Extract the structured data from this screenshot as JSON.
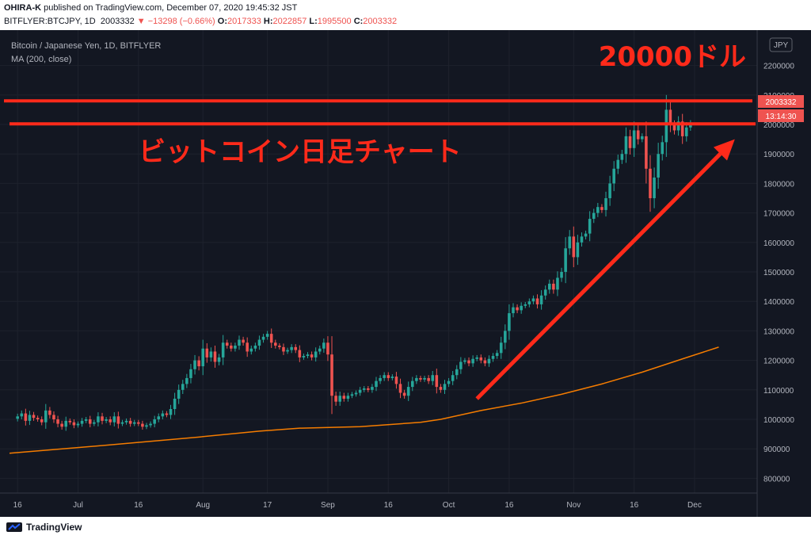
{
  "header": {
    "author": "OHIRA-K",
    "published_text": "published on TradingView.com, December 07, 2020 19:45:32 JST",
    "symbol": "BITFLYER:BTCJPY, 1D",
    "last": "2003332",
    "change": "▼ −13298 (−0.66%)",
    "o_label": "O:",
    "o_value": "2017333",
    "h_label": "H:",
    "h_value": "2022857",
    "l_label": "L:",
    "l_value": "1995500",
    "c_label": "C:",
    "c_value": "2003332"
  },
  "legend": {
    "instrument": "Bitcoin / Japanese Yen, 1D, BITFLYER",
    "indicator": "MA (200, close)"
  },
  "annotations": {
    "level_label": "20000ドル",
    "chart_caption": "ビットコイン日足チャート"
  },
  "price_badge": {
    "value": "2003332",
    "timer": "13:14:30"
  },
  "currency_button": "JPY",
  "brand": "TradingView",
  "colors": {
    "background": "#131722",
    "up": "#26a69a",
    "down": "#ef5350",
    "ma": "#f57c00",
    "annotation": "#ff2a1a"
  },
  "chart_data": {
    "type": "candlestick",
    "ylim": [
      750000,
      2320000
    ],
    "y_ticks": [
      800000,
      900000,
      1000000,
      1100000,
      1200000,
      1300000,
      1400000,
      1500000,
      1600000,
      1700000,
      1800000,
      1900000,
      2000000,
      2100000,
      2200000
    ],
    "x_ticks": [
      {
        "day": 0,
        "label": "16"
      },
      {
        "day": 15,
        "label": "Jul"
      },
      {
        "day": 30,
        "label": "16"
      },
      {
        "day": 46,
        "label": "Aug"
      },
      {
        "day": 62,
        "label": "17"
      },
      {
        "day": 77,
        "label": "Sep"
      },
      {
        "day": 92,
        "label": "16"
      },
      {
        "day": 107,
        "label": "Oct"
      },
      {
        "day": 122,
        "label": "16"
      },
      {
        "day": 138,
        "label": "Nov"
      },
      {
        "day": 153,
        "label": "16"
      },
      {
        "day": 168,
        "label": "Dec"
      }
    ],
    "day_range": [
      -2,
      180
    ],
    "horizontal_lines": [
      2080000,
      2002000
    ],
    "trend_arrow": {
      "from": [
        114,
        1070000
      ],
      "to": [
        178,
        1950000
      ]
    },
    "ma200": [
      [
        -2,
        885000
      ],
      [
        20,
        910000
      ],
      [
        45,
        940000
      ],
      [
        60,
        960000
      ],
      [
        70,
        970000
      ],
      [
        85,
        975000
      ],
      [
        100,
        990000
      ],
      [
        105,
        1000000
      ],
      [
        115,
        1030000
      ],
      [
        125,
        1055000
      ],
      [
        135,
        1085000
      ],
      [
        145,
        1120000
      ],
      [
        155,
        1160000
      ],
      [
        165,
        1205000
      ],
      [
        174,
        1245000
      ]
    ],
    "closes": [
      1010000,
      1020000,
      995000,
      1015000,
      1005000,
      1000000,
      990000,
      1030000,
      1015000,
      1000000,
      985000,
      975000,
      995000,
      990000,
      980000,
      985000,
      995000,
      1000000,
      985000,
      990000,
      1010000,
      995000,
      1000000,
      990000,
      1010000,
      985000,
      990000,
      995000,
      985000,
      990000,
      985000,
      975000,
      980000,
      985000,
      1000000,
      1010000,
      1020000,
      1015000,
      1035000,
      1070000,
      1100000,
      1120000,
      1140000,
      1170000,
      1200000,
      1180000,
      1240000,
      1210000,
      1230000,
      1195000,
      1210000,
      1260000,
      1250000,
      1240000,
      1250000,
      1270000,
      1260000,
      1230000,
      1240000,
      1250000,
      1270000,
      1280000,
      1290000,
      1260000,
      1250000,
      1245000,
      1230000,
      1235000,
      1245000,
      1235000,
      1210000,
      1215000,
      1220000,
      1210000,
      1230000,
      1240000,
      1260000,
      1220000,
      1080000,
      1060000,
      1080000,
      1070000,
      1080000,
      1085000,
      1090000,
      1100000,
      1105000,
      1100000,
      1110000,
      1130000,
      1140000,
      1150000,
      1140000,
      1145000,
      1120000,
      1090000,
      1080000,
      1110000,
      1130000,
      1140000,
      1135000,
      1140000,
      1130000,
      1150000,
      1110000,
      1100000,
      1120000,
      1130000,
      1150000,
      1170000,
      1195000,
      1200000,
      1190000,
      1205000,
      1210000,
      1200000,
      1190000,
      1205000,
      1215000,
      1225000,
      1260000,
      1300000,
      1360000,
      1380000,
      1370000,
      1385000,
      1390000,
      1400000,
      1410000,
      1390000,
      1420000,
      1440000,
      1460000,
      1440000,
      1480000,
      1500000,
      1580000,
      1620000,
      1550000,
      1600000,
      1620000,
      1630000,
      1680000,
      1700000,
      1720000,
      1710000,
      1750000,
      1800000,
      1850000,
      1880000,
      1900000,
      1960000,
      1920000,
      1980000,
      1950000,
      1960000,
      1850000,
      1750000,
      1820000,
      1900000,
      1940000,
      2050000,
      2000000,
      1980000,
      2010000,
      1960000,
      1990000,
      2003332
    ]
  }
}
